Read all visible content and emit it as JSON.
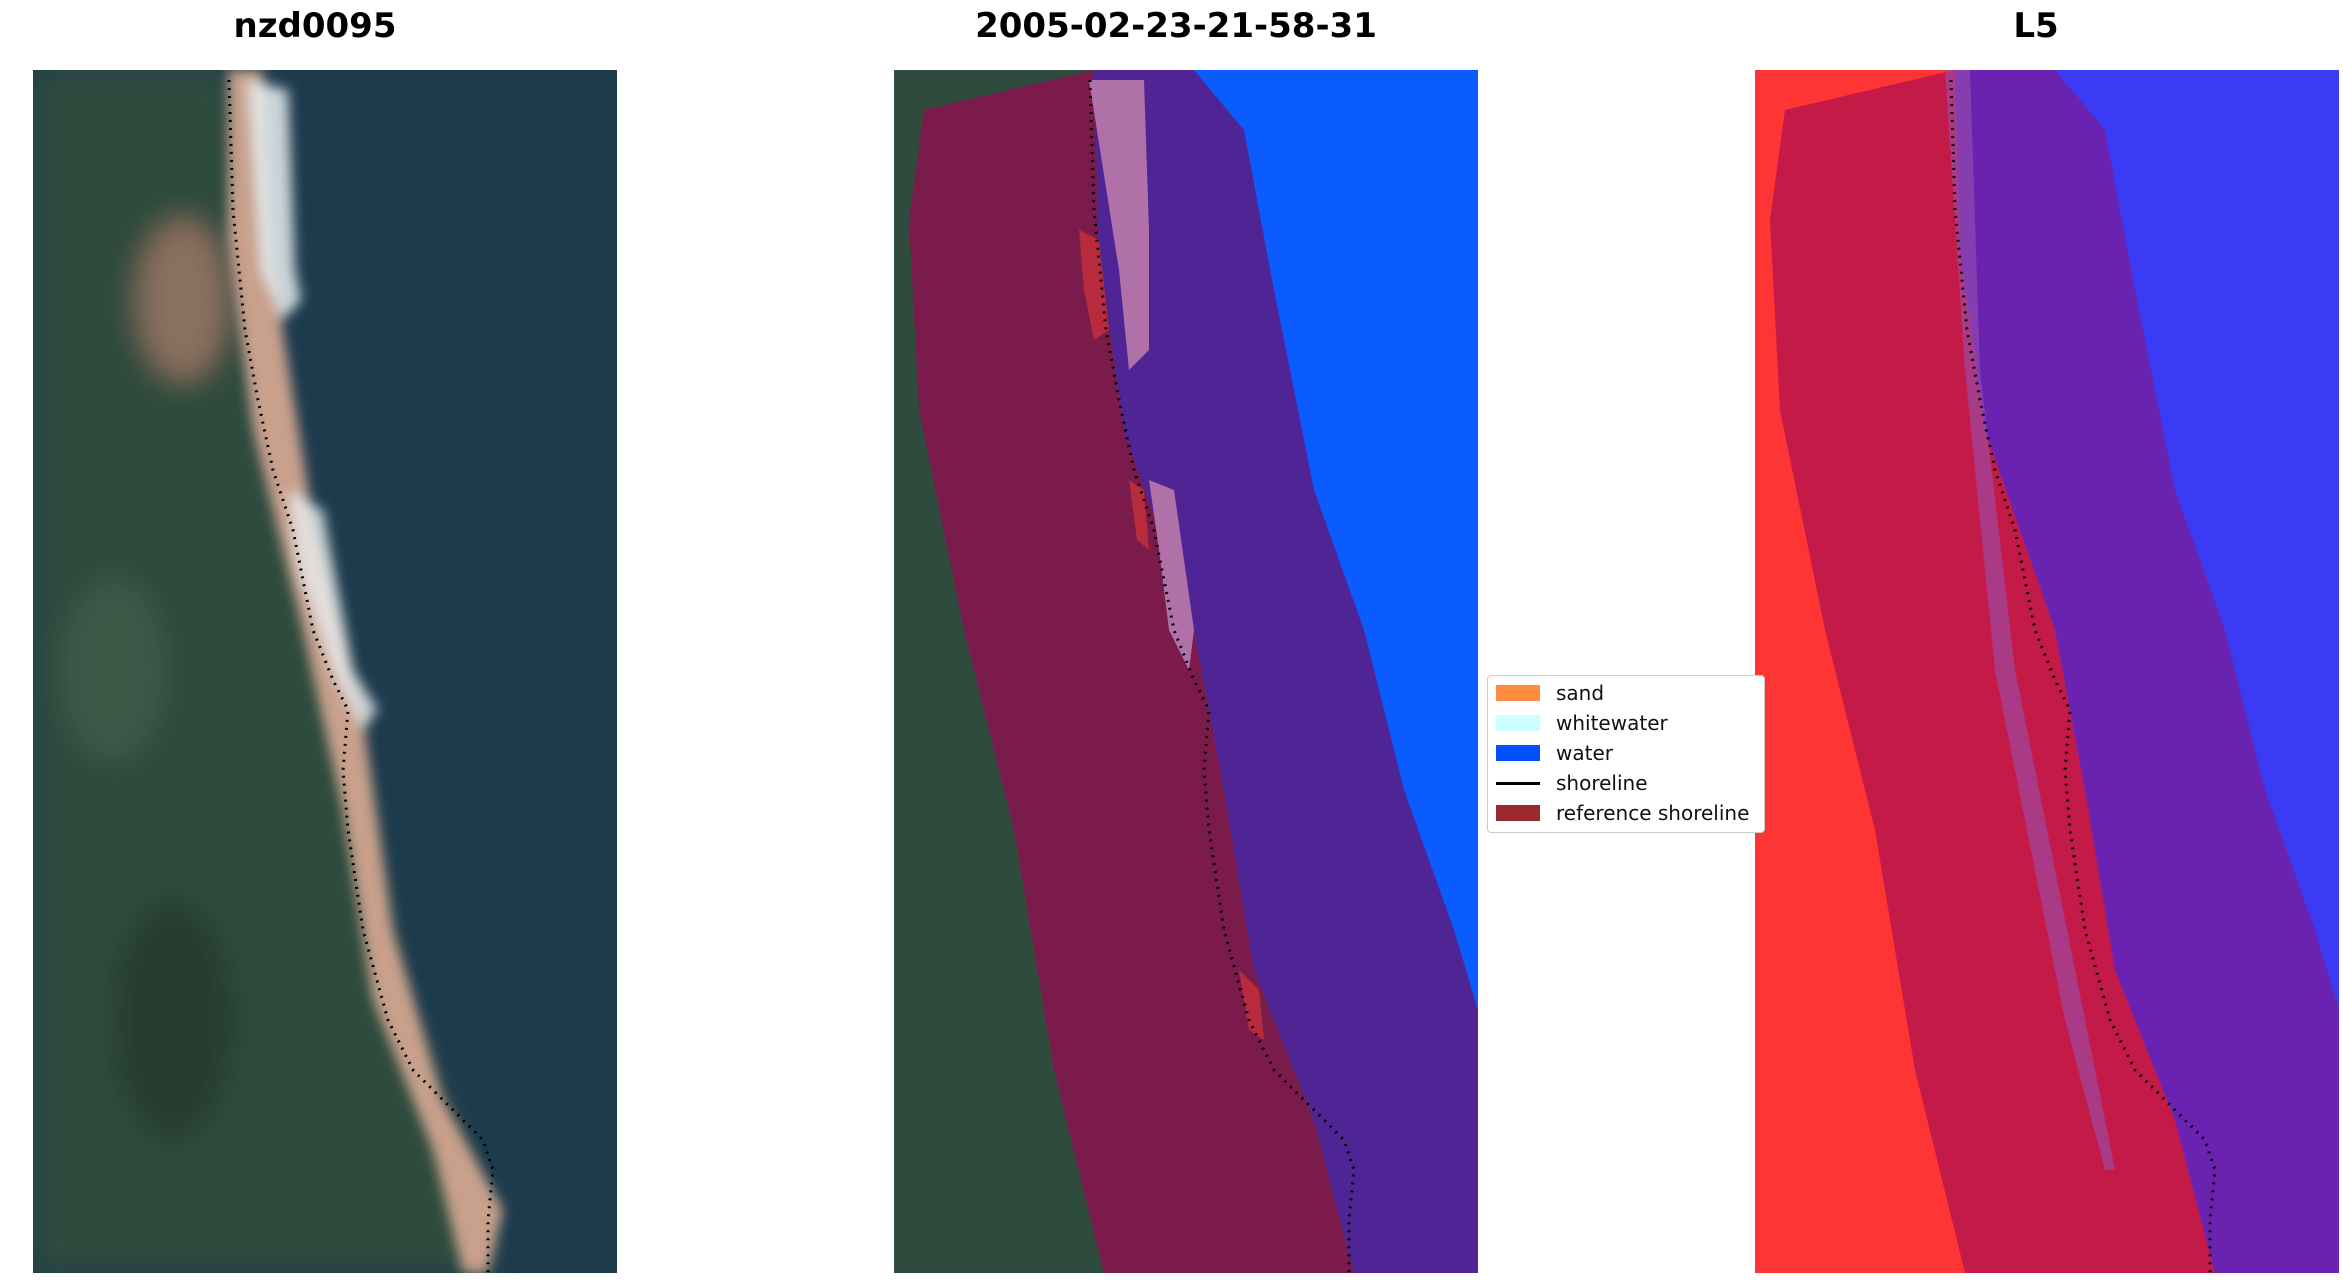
{
  "titles": {
    "left": "nzd0095",
    "middle": "2005-02-23-21-58-31",
    "right": "L5"
  },
  "legend": {
    "items": [
      {
        "label": "sand",
        "kind": "patch",
        "color": "#ff8c42"
      },
      {
        "label": "whitewater",
        "kind": "patch",
        "color": "#ccffff"
      },
      {
        "label": "water",
        "kind": "patch",
        "color": "#0050ff"
      },
      {
        "label": "shoreline",
        "kind": "line",
        "color": "#000000"
      },
      {
        "label": "reference shoreline",
        "kind": "patch",
        "color": "#9a2a2e"
      }
    ]
  },
  "colors": {
    "land": "#2e4a3c",
    "sea": "#1f3c4e",
    "beach": "#c59a86",
    "buffer_land": "#7a1a4a",
    "buffer_sea": "#4f2596",
    "water_class": "#0a5cff",
    "index_land": "#ff3030",
    "index_water": "#3b3bf5",
    "index_buffer_land": "#c41a48",
    "index_buffer_sea": "#6a22b0"
  }
}
